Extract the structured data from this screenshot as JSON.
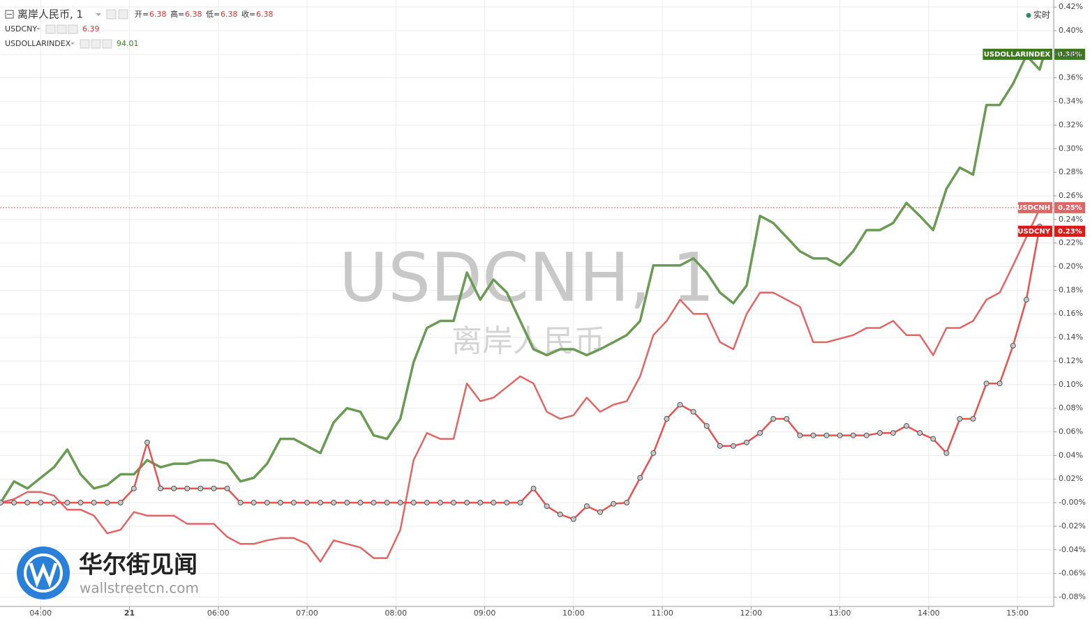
{
  "chart_data": {
    "type": "line",
    "title": "离岸人民币, 1",
    "ohlc": [
      {
        "label": "开=",
        "value": "6.38"
      },
      {
        "label": "高=",
        "value": "6.38"
      },
      {
        "label": "低=",
        "value": "6.38"
      },
      {
        "label": "收=",
        "value": "6.38"
      }
    ],
    "symbols": [
      {
        "name": "USDCNY",
        "value": "6.39",
        "color": "#e03030"
      },
      {
        "name": "USDOLLARINDEX",
        "value": "94.01",
        "color": "#3c7a1e"
      }
    ],
    "realtime": "实时",
    "watermark": "USDCNH, 1",
    "watermark_sub": "离岸人民币",
    "brand": "华尔街见闻",
    "brand_url": "wallstreetcn.com",
    "grid": true,
    "xlim": [
      3.55,
      15.4
    ],
    "ylim": [
      -0.088,
      0.426
    ],
    "xticks": [
      {
        "value": 4,
        "label": "04:00"
      },
      {
        "value": 5,
        "label": "21"
      },
      {
        "value": 6,
        "label": "06:00"
      },
      {
        "value": 7,
        "label": "07:00"
      },
      {
        "value": 8,
        "label": "08:00"
      },
      {
        "value": 9,
        "label": "09:00"
      },
      {
        "value": 10,
        "label": "10:00"
      },
      {
        "value": 11,
        "label": "11:00"
      },
      {
        "value": 12,
        "label": "12:00"
      },
      {
        "value": 13,
        "label": "13:00"
      },
      {
        "value": 14,
        "label": "14:00"
      },
      {
        "value": 15,
        "label": "15:00"
      }
    ],
    "yticks": [
      {
        "value": 0.42,
        "label": "0.42%"
      },
      {
        "value": 0.4,
        "label": "0.40%"
      },
      {
        "value": 0.38,
        "label": "0.38%"
      },
      {
        "value": 0.36,
        "label": "0.36%"
      },
      {
        "value": 0.34,
        "label": "0.34%"
      },
      {
        "value": 0.32,
        "label": "0.32%"
      },
      {
        "value": 0.3,
        "label": "0.30%"
      },
      {
        "value": 0.28,
        "label": "0.28%"
      },
      {
        "value": 0.26,
        "label": "0.26%"
      },
      {
        "value": 0.24,
        "label": "0.24%"
      },
      {
        "value": 0.22,
        "label": "0.22%"
      },
      {
        "value": 0.2,
        "label": "0.20%"
      },
      {
        "value": 0.18,
        "label": "0.18%"
      },
      {
        "value": 0.16,
        "label": "0.16%"
      },
      {
        "value": 0.14,
        "label": "0.14%"
      },
      {
        "value": 0.12,
        "label": "0.12%"
      },
      {
        "value": 0.1,
        "label": "0.10%"
      },
      {
        "value": 0.08,
        "label": "0.08%"
      },
      {
        "value": 0.06,
        "label": "0.06%"
      },
      {
        "value": 0.04,
        "label": "0.04%"
      },
      {
        "value": 0.02,
        "label": "0.02%"
      },
      {
        "value": 0,
        "label": "-0.00%"
      },
      {
        "value": -0.02,
        "label": "-0.02%"
      },
      {
        "value": -0.04,
        "label": "-0.04%"
      },
      {
        "value": -0.06,
        "label": "-0.06%"
      },
      {
        "value": -0.08,
        "label": "-0.08%"
      }
    ],
    "x": [
      3.55,
      3.7,
      3.85,
      4.0,
      4.15,
      4.3,
      4.45,
      4.6,
      4.75,
      4.9,
      5.05,
      5.2,
      5.35,
      5.5,
      5.65,
      5.8,
      5.95,
      6.1,
      6.25,
      6.4,
      6.55,
      6.7,
      6.85,
      7.0,
      7.15,
      7.3,
      7.45,
      7.6,
      7.75,
      7.9,
      8.05,
      8.2,
      8.35,
      8.5,
      8.65,
      8.8,
      8.95,
      9.1,
      9.25,
      9.4,
      9.55,
      9.7,
      9.85,
      10.0,
      10.15,
      10.3,
      10.45,
      10.6,
      10.75,
      10.9,
      11.05,
      11.2,
      11.35,
      11.5,
      11.65,
      11.8,
      11.95,
      12.1,
      12.25,
      12.4,
      12.55,
      12.7,
      12.85,
      13.0,
      13.15,
      13.3,
      13.45,
      13.6,
      13.75,
      13.9,
      14.05,
      14.2,
      14.35,
      14.5,
      14.65,
      14.8,
      14.95,
      15.1,
      15.25,
      15.3
    ],
    "series": [
      {
        "name": "USDOLLARINDEX",
        "color": "#6a9a54",
        "tag_color": "#3c7a1e",
        "tag": "0.38%",
        "values": [
          0.0,
          0.018,
          0.012,
          0.021,
          0.03,
          0.045,
          0.024,
          0.012,
          0.015,
          0.024,
          0.024,
          0.036,
          0.03,
          0.033,
          0.033,
          0.036,
          0.036,
          0.033,
          0.018,
          0.021,
          0.033,
          0.054,
          0.054,
          0.048,
          0.042,
          0.068,
          0.08,
          0.077,
          0.057,
          0.054,
          0.071,
          0.119,
          0.148,
          0.154,
          0.154,
          0.195,
          0.172,
          0.189,
          0.178,
          0.154,
          0.13,
          0.125,
          0.13,
          0.13,
          0.125,
          0.13,
          0.136,
          0.142,
          0.154,
          0.201,
          0.201,
          0.201,
          0.207,
          0.195,
          0.178,
          0.169,
          0.184,
          0.243,
          0.237,
          0.225,
          0.213,
          0.207,
          0.207,
          0.201,
          0.213,
          0.231,
          0.231,
          0.237,
          0.254,
          0.243,
          0.231,
          0.266,
          0.284,
          0.278,
          0.337,
          0.337,
          0.355,
          0.379,
          0.367,
          0.38
        ]
      },
      {
        "name": "USDCNH",
        "color": "#e06666",
        "tag_color": "#e06666",
        "tag": "0.25%",
        "values": [
          0.0,
          0.003,
          0.009,
          0.009,
          0.006,
          -0.006,
          -0.006,
          -0.011,
          -0.026,
          -0.023,
          -0.008,
          -0.011,
          -0.011,
          -0.011,
          -0.018,
          -0.018,
          -0.018,
          -0.029,
          -0.035,
          -0.035,
          -0.032,
          -0.03,
          -0.03,
          -0.035,
          -0.05,
          -0.032,
          -0.035,
          -0.038,
          -0.047,
          -0.047,
          -0.023,
          0.036,
          0.059,
          0.054,
          0.054,
          0.101,
          0.086,
          0.089,
          0.098,
          0.107,
          0.101,
          0.077,
          0.071,
          0.074,
          0.089,
          0.077,
          0.083,
          0.086,
          0.107,
          0.142,
          0.154,
          0.172,
          0.16,
          0.16,
          0.136,
          0.13,
          0.16,
          0.178,
          0.178,
          0.172,
          0.166,
          0.136,
          0.136,
          0.139,
          0.142,
          0.148,
          0.148,
          0.154,
          0.142,
          0.142,
          0.125,
          0.148,
          0.148,
          0.154,
          0.172,
          0.178,
          0.201,
          0.225,
          0.249,
          0.25
        ]
      },
      {
        "name": "USDCNY",
        "color": "#e8504f",
        "tag_color": "#e01818",
        "tag": "0.23%",
        "markers": true,
        "values": [
          0,
          0,
          0,
          0,
          0,
          0,
          0,
          0,
          0,
          0,
          0.012,
          0.051,
          0.012,
          0.012,
          0.012,
          0.012,
          0.012,
          0.012,
          0,
          0,
          0,
          0,
          0,
          0,
          0,
          0,
          0,
          0,
          0,
          0,
          0,
          0,
          0,
          0,
          0,
          0,
          0,
          0,
          0,
          0,
          0.012,
          -0.003,
          -0.01,
          -0.014,
          -0.003,
          -0.008,
          -0.001,
          0.0,
          0.021,
          0.042,
          0.071,
          0.083,
          0.077,
          0.065,
          0.048,
          0.048,
          0.051,
          0.059,
          0.071,
          0.071,
          0.057,
          0.057,
          0.057,
          0.057,
          0.057,
          0.057,
          0.059,
          0.059,
          0.065,
          0.059,
          0.054,
          0.042,
          0.071,
          0.071,
          0.101,
          0.101,
          0.133,
          0.172,
          0.234,
          0.23
        ]
      }
    ]
  }
}
